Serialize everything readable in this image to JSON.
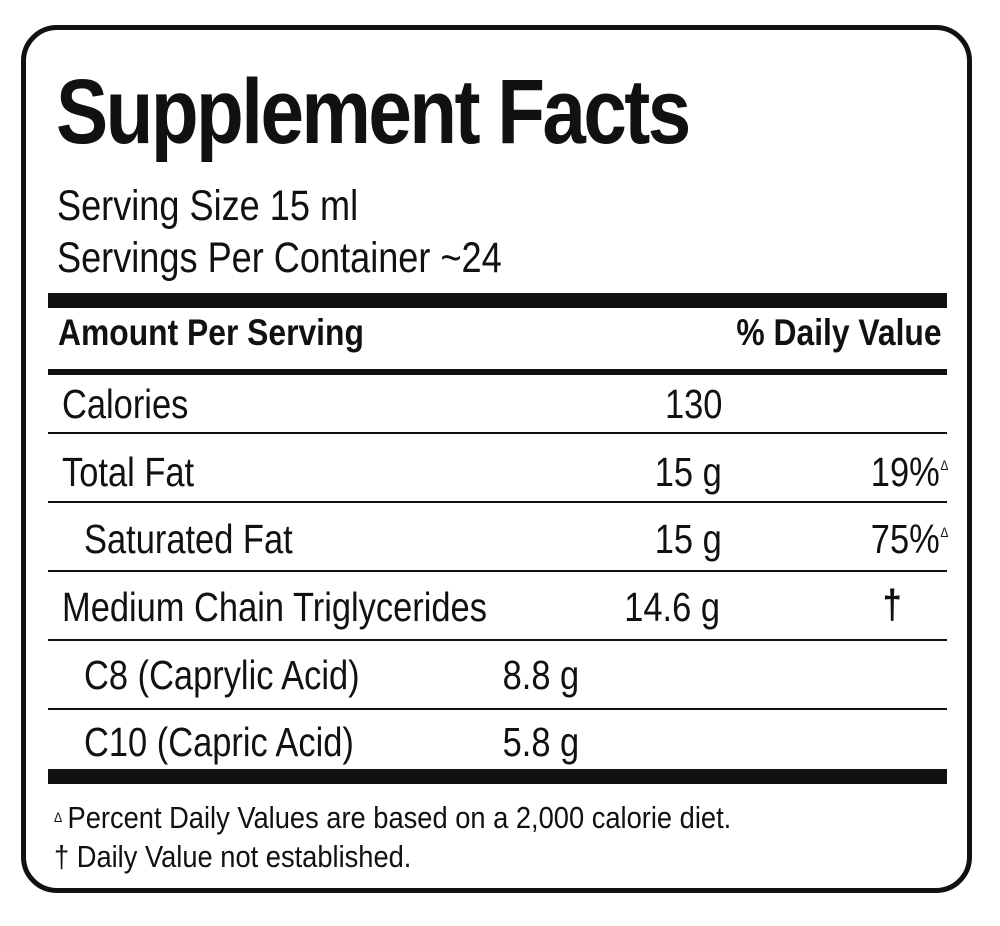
{
  "title": "Supplement Facts",
  "serving_size": "Serving Size 15 ml",
  "servings_per_container": "Servings Per Container ~24",
  "header": {
    "amount_per_serving": "Amount Per Serving",
    "daily_value": "% Daily Value"
  },
  "rows": [
    {
      "name": "Calories",
      "amount": "130",
      "dv": "",
      "dv_symbol": ""
    },
    {
      "name": "Total Fat",
      "amount": "15 g",
      "dv": "19%",
      "dv_symbol": "Δ"
    },
    {
      "name": "Saturated Fat",
      "amount": "15 g",
      "dv": "75%",
      "dv_symbol": "Δ"
    },
    {
      "name": "Medium Chain Triglycerides",
      "amount": "14.6 g",
      "dv": "†",
      "dv_symbol": ""
    },
    {
      "name": "C8 (Caprylic Acid)",
      "amount": "8.8 g",
      "dv": "",
      "dv_symbol": ""
    },
    {
      "name": "C10 (Capric Acid)",
      "amount": "5.8 g",
      "dv": "",
      "dv_symbol": ""
    }
  ],
  "footnotes": {
    "percent_symbol": "Δ",
    "percent_text": "Percent Daily Values are based on a 2,000 calorie diet.",
    "dagger_text": "† Daily Value not established."
  }
}
